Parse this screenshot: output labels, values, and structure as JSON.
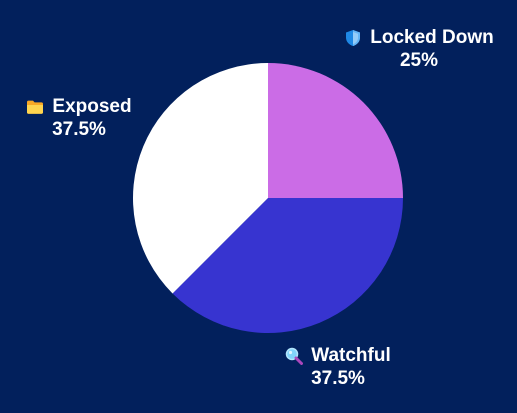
{
  "colors": {
    "background": "#02205c",
    "text": "#ffffff"
  },
  "chart_data": {
    "type": "pie",
    "title": "",
    "start_angle_deg": 0,
    "direction": "clockwise",
    "slices": [
      {
        "label": "Locked Down",
        "value": 25,
        "display": "25%",
        "color": "#cb6ce6",
        "icon": "shield-icon"
      },
      {
        "label": "Watchful",
        "value": 37.5,
        "display": "37.5%",
        "color": "#3734d0",
        "icon": "magnifier-icon"
      },
      {
        "label": "Exposed",
        "value": 37.5,
        "display": "37.5%",
        "color": "#ffffff",
        "icon": "folder-icon"
      }
    ]
  }
}
